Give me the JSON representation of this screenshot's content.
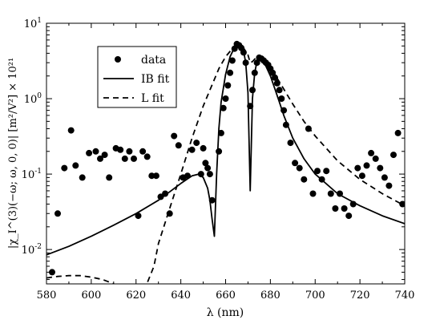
{
  "chart_data": {
    "type": "scatter",
    "xlabel": "λ (nm)",
    "ylabel": "|χ_I^(3)(−ω; ω, 0, 0)| [m²/V²] × 10²¹",
    "xlim": [
      580,
      740
    ],
    "ylim": [
      0.0035,
      10
    ],
    "yscale": "log",
    "x_ticks": [
      580,
      600,
      620,
      640,
      660,
      680,
      700,
      720,
      740
    ],
    "y_ticks": [
      {
        "value": 0.01,
        "base": "10",
        "exp": "-2"
      },
      {
        "value": 0.1,
        "base": "10",
        "exp": "-1"
      },
      {
        "value": 1,
        "base": "10",
        "exp": "0"
      },
      {
        "value": 10,
        "base": "10",
        "exp": "1"
      }
    ],
    "grid": false,
    "legend": {
      "position": "top-left",
      "entries": [
        "data",
        "IB fit",
        "L fit"
      ]
    },
    "series": [
      {
        "name": "data",
        "style": "markers",
        "color": "#000000",
        "x": [
          582.5,
          585,
          588,
          591,
          593,
          596,
          599,
          602,
          604,
          606,
          608,
          611,
          613,
          615,
          617,
          619,
          621,
          623,
          625,
          627,
          629,
          631,
          633,
          635,
          637,
          639,
          641,
          643,
          645,
          647,
          649,
          650,
          651,
          652,
          653,
          654,
          657,
          658,
          659,
          660,
          661,
          662,
          663,
          664,
          665,
          666,
          667,
          668,
          669,
          671,
          672,
          673,
          674,
          675,
          676,
          677,
          678,
          679,
          680,
          681,
          682,
          683,
          684,
          685,
          686,
          687,
          689,
          691,
          693,
          695,
          697,
          699,
          701,
          703,
          705,
          707,
          709,
          711,
          713,
          715,
          717,
          719,
          721,
          723,
          725,
          727,
          729,
          731,
          733,
          735,
          737,
          739
        ],
        "y": [
          0.005,
          0.03,
          0.12,
          0.38,
          0.13,
          0.09,
          0.19,
          0.2,
          0.16,
          0.18,
          0.09,
          0.22,
          0.21,
          0.16,
          0.2,
          0.16,
          0.028,
          0.2,
          0.17,
          0.095,
          0.095,
          0.05,
          0.055,
          0.03,
          0.32,
          0.24,
          0.09,
          0.095,
          0.21,
          0.26,
          0.1,
          0.22,
          0.14,
          0.12,
          0.1,
          0.045,
          0.2,
          0.35,
          0.75,
          1.0,
          1.5,
          2.2,
          3.2,
          4.6,
          5.3,
          5.1,
          4.7,
          4.1,
          3.0,
          0.8,
          1.3,
          2.2,
          3.0,
          3.5,
          3.4,
          3.2,
          3.0,
          2.8,
          2.5,
          2.2,
          1.9,
          1.6,
          1.3,
          1.0,
          0.7,
          0.45,
          0.26,
          0.14,
          0.12,
          0.085,
          0.4,
          0.055,
          0.11,
          0.085,
          0.11,
          0.055,
          0.035,
          0.055,
          0.035,
          0.028,
          0.04,
          0.12,
          0.095,
          0.13,
          0.19,
          0.16,
          0.12,
          0.09,
          0.07,
          0.18,
          0.35,
          0.04
        ]
      },
      {
        "name": "IB fit",
        "style": "solid",
        "color": "#000000",
        "x": [
          580,
          590,
          600,
          610,
          620,
          630,
          640,
          645,
          648,
          650,
          652,
          653,
          654,
          655,
          656,
          657,
          658,
          660,
          662,
          664,
          666,
          667,
          668,
          669,
          670,
          671,
          672,
          673,
          674,
          675,
          676,
          678,
          680,
          682,
          684,
          686,
          690,
          695,
          700,
          710,
          720,
          730,
          740
        ],
        "y": [
          0.0085,
          0.011,
          0.015,
          0.021,
          0.03,
          0.045,
          0.075,
          0.095,
          0.1,
          0.09,
          0.065,
          0.045,
          0.025,
          0.015,
          0.1,
          0.4,
          0.9,
          2.1,
          3.6,
          4.8,
          5.3,
          5.0,
          4.3,
          3.0,
          1.2,
          0.06,
          1.0,
          2.2,
          3.1,
          3.4,
          3.3,
          2.7,
          2.0,
          1.35,
          0.9,
          0.6,
          0.3,
          0.16,
          0.1,
          0.055,
          0.038,
          0.028,
          0.022
        ]
      },
      {
        "name": "L fit",
        "style": "dashed",
        "color": "#000000",
        "x": [
          580,
          585,
          590,
          595,
          600,
          605,
          608,
          612,
          615,
          617,
          619,
          621,
          623,
          625,
          628,
          630,
          635,
          640,
          645,
          650,
          653,
          655,
          657,
          660,
          663,
          666,
          668,
          670,
          671,
          672,
          674,
          676,
          680,
          685,
          690,
          695,
          700,
          710,
          720,
          730,
          740
        ],
        "y": [
          0.0042,
          0.0044,
          0.0045,
          0.0045,
          0.0043,
          0.004,
          0.0037,
          0.0033,
          0.003,
          0.0029,
          0.003,
          0.0032,
          0.0034,
          0.0036,
          0.006,
          0.012,
          0.035,
          0.1,
          0.3,
          0.8,
          1.3,
          1.8,
          2.5,
          3.6,
          4.6,
          5.0,
          4.7,
          3.8,
          3.0,
          3.1,
          3.6,
          3.5,
          2.6,
          1.5,
          0.85,
          0.5,
          0.32,
          0.15,
          0.085,
          0.055,
          0.038
        ]
      }
    ]
  }
}
